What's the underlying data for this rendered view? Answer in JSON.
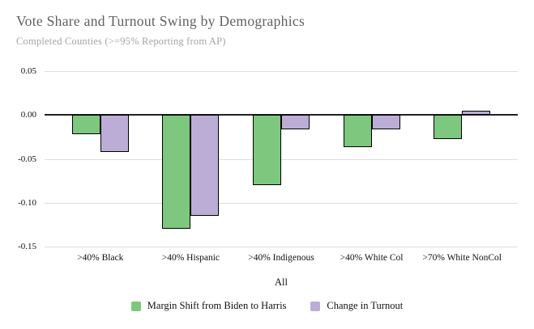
{
  "colors": {
    "background": "#ffffff",
    "gridline": "#dddddd",
    "zero_line": "#212121",
    "bar_border": "#000000",
    "title_text": "#616161",
    "subtitle_text": "#a3a3a3",
    "axis_text": "#111111",
    "series_green": "#7dc87e",
    "series_purple": "#bcadd6"
  },
  "chart_data": {
    "type": "bar",
    "title": "Vote Share and Turnout Swing by Demographics",
    "subtitle": "Completed Counties (>=95% Reporting from AP)",
    "categories": [
      ">40% Black",
      ">40% Hispanic",
      ">40% Indigenous",
      ">40% White Col",
      ">70% White NonCol"
    ],
    "series": [
      {
        "name": "Margin Shift from Biden to Harris",
        "color": "#7dc87e",
        "values": [
          -0.022,
          -0.13,
          -0.08,
          -0.037,
          -0.027
        ]
      },
      {
        "name": "Change in Turnout",
        "color": "#bcadd6",
        "values": [
          -0.042,
          -0.115,
          -0.016,
          -0.016,
          0.005
        ]
      }
    ],
    "xlabel": "All",
    "ylabel": "",
    "ylim": [
      -0.15,
      0.05
    ],
    "yticks": [
      0.05,
      0.0,
      -0.05,
      -0.1,
      -0.15
    ],
    "grid": true,
    "legend_position": "bottom"
  }
}
